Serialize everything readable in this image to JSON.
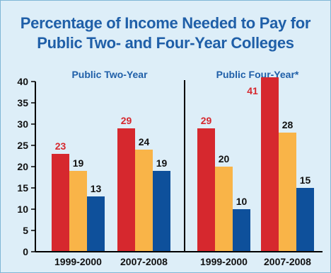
{
  "chart_data": {
    "type": "bar",
    "title": "Percentage of Income Needed to Pay for Public Two- and Four-Year Colleges",
    "title_lines": [
      "Percentage of Income Needed to Pay for",
      "Public Two- and Four-Year Colleges"
    ],
    "xlabel": "",
    "ylabel": "",
    "ylim": [
      0,
      40
    ],
    "yticks": [
      0,
      5,
      10,
      15,
      20,
      25,
      30,
      35,
      40
    ],
    "grid": false,
    "legend": "none",
    "panels": [
      {
        "label": "Public Two-Year",
        "categories": [
          "1999-2000",
          "2007-2008"
        ],
        "series": [
          {
            "values": [
              23,
              29
            ],
            "color": "#d6282e"
          },
          {
            "values": [
              19,
              24
            ],
            "color": "#f9b448"
          },
          {
            "values": [
              13,
              19
            ],
            "color": "#0e509b"
          }
        ]
      },
      {
        "label": "Public Four-Year*",
        "categories": [
          "1999-2000",
          "2007-2008"
        ],
        "series": [
          {
            "values": [
              29,
              41
            ],
            "color": "#d6282e"
          },
          {
            "values": [
              20,
              28
            ],
            "color": "#f9b448"
          },
          {
            "values": [
              10,
              15
            ],
            "color": "#0e509b"
          }
        ]
      }
    ],
    "label_colors": [
      "#d6282e",
      "#111111",
      "#111111"
    ]
  },
  "colors": {
    "background": "#ddeef8",
    "title": "#1f5fa8",
    "axis": "#000000"
  }
}
